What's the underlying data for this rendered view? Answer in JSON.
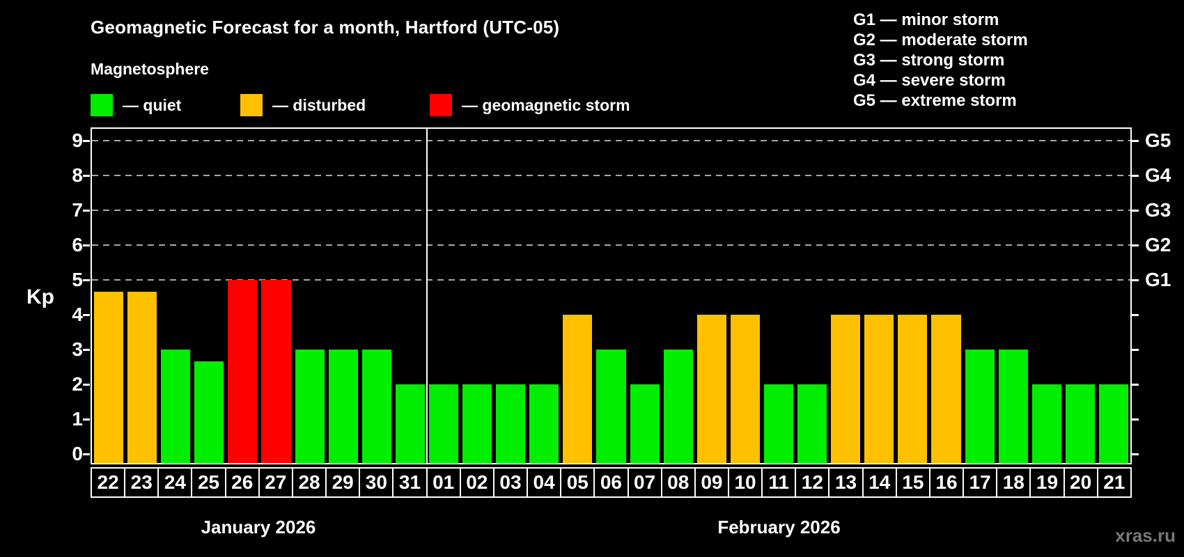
{
  "header": {
    "subtitle": "Magnetosphere"
  },
  "legend": {
    "items": [
      {
        "id": "quiet",
        "label": "— quiet",
        "color": "#00ee00"
      },
      {
        "id": "disturbed",
        "label": "— disturbed",
        "color": "#ffc000"
      },
      {
        "id": "storm",
        "label": "— geomagnetic storm",
        "color": "#ff0000"
      }
    ]
  },
  "storm_scale": [
    "G1 — minor storm",
    "G2 — moderate storm",
    "G3 — strong storm",
    "G4 — severe storm",
    "G5 — extreme storm"
  ],
  "watermark": "xras.ru",
  "chart_data": {
    "type": "bar",
    "title": "Geomagnetic Forecast for a month, Hartford (UTC-05)",
    "ylabel": "Kp",
    "ylim": [
      0,
      9
    ],
    "y_ticks": [
      0,
      1,
      2,
      3,
      4,
      5,
      6,
      7,
      8,
      9
    ],
    "gridlines_at": [
      5,
      6,
      7,
      8,
      9
    ],
    "right_axis_labels": [
      {
        "label": "G1",
        "kp": 5
      },
      {
        "label": "G2",
        "kp": 6
      },
      {
        "label": "G3",
        "kp": 7
      },
      {
        "label": "G4",
        "kp": 8
      },
      {
        "label": "G5",
        "kp": 9
      }
    ],
    "months": [
      {
        "label": "January 2026",
        "days": 10
      },
      {
        "label": "February 2026",
        "days": 21
      }
    ],
    "categories": [
      "22",
      "23",
      "24",
      "25",
      "26",
      "27",
      "28",
      "29",
      "30",
      "31",
      "01",
      "02",
      "03",
      "04",
      "05",
      "06",
      "07",
      "08",
      "09",
      "10",
      "11",
      "12",
      "13",
      "14",
      "15",
      "16",
      "17",
      "18",
      "19",
      "20",
      "21"
    ],
    "values": [
      4.67,
      4.67,
      3,
      2.67,
      5,
      5,
      3,
      3,
      3,
      2,
      2,
      2,
      2,
      2,
      4,
      3,
      2,
      3,
      4,
      4,
      2,
      2,
      4,
      4,
      4,
      4,
      3,
      3,
      2,
      2,
      2
    ],
    "status": [
      "disturbed",
      "disturbed",
      "quiet",
      "quiet",
      "storm",
      "storm",
      "quiet",
      "quiet",
      "quiet",
      "quiet",
      "quiet",
      "quiet",
      "quiet",
      "quiet",
      "disturbed",
      "quiet",
      "quiet",
      "quiet",
      "disturbed",
      "disturbed",
      "quiet",
      "quiet",
      "disturbed",
      "disturbed",
      "disturbed",
      "disturbed",
      "quiet",
      "quiet",
      "quiet",
      "quiet",
      "quiet"
    ],
    "status_colors": {
      "quiet": "#00ee00",
      "disturbed": "#ffc000",
      "storm": "#ff0000"
    },
    "legend_position": "top-left",
    "grid": "dashed horizontal at Kp 5-9 only"
  }
}
